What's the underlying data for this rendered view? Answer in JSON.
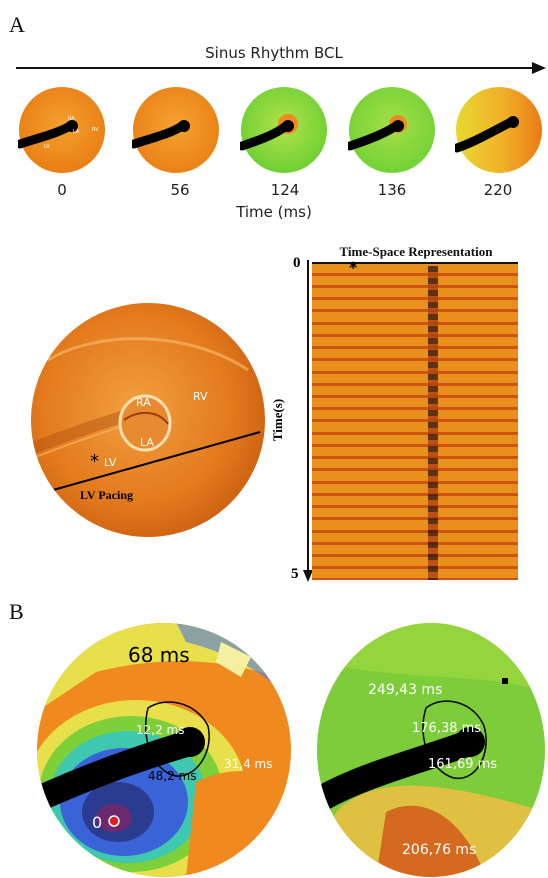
{
  "figure": {
    "panel_a_label": "A",
    "panel_b_label": "B",
    "sinus_rhythm_label": "Sinus Rhythm BCL",
    "time_axis_label": "Time (ms)",
    "frame_times": [
      "0",
      "56",
      "124",
      "136",
      "220"
    ],
    "first_frame_labels": {
      "ra": "RA",
      "la": "LA",
      "rv": "RV",
      "lv": "LV"
    },
    "heart_labels": {
      "ra": "RA",
      "la": "LA",
      "rv": "RV",
      "lv": "LV",
      "pacing_site": "*",
      "pacing": "LV Pacing"
    },
    "time_space": {
      "title": "Time-Space Representation",
      "ylabel": "Time(s)",
      "y_start": "0",
      "y_end": "5",
      "marker": "*"
    },
    "map_left": {
      "title": "68 ms",
      "origin": "0",
      "values": [
        "12,2 ms",
        "48,2 ms",
        "31,4 ms"
      ]
    },
    "map_right": {
      "values": [
        "249,43 ms",
        "176,38 ms",
        "161,69 ms",
        "206,76 ms"
      ]
    }
  },
  "colors": {
    "orange": "#ee8a1e",
    "green": "#7fd03a",
    "yellow": "#e6e03a",
    "blue": "#3a63d8",
    "catheter": "#000000"
  }
}
